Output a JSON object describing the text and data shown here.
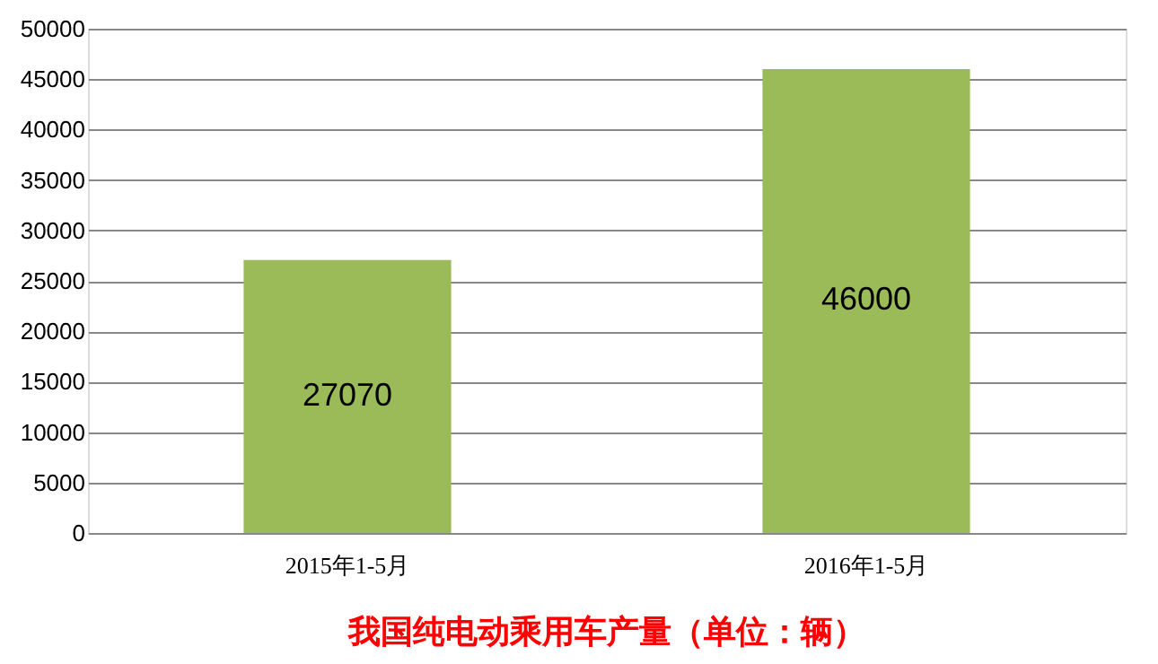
{
  "chart_data": {
    "type": "bar",
    "title": "我国纯电动乘用车产量（单位：辆）",
    "categories": [
      "2015年1-5月",
      "2016年1-5月"
    ],
    "series": [
      {
        "color": "#9bbb59",
        "values": [
          27070,
          46000
        ]
      }
    ],
    "ylim": [
      0,
      50000
    ],
    "yticks": [
      0,
      5000,
      10000,
      15000,
      20000,
      25000,
      30000,
      35000,
      40000,
      45000,
      50000
    ],
    "grid": "y",
    "legend": false,
    "data_labels": true
  }
}
